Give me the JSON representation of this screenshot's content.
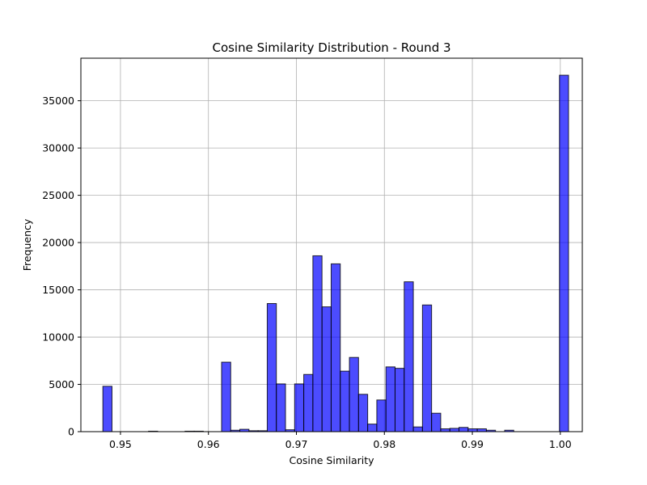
{
  "chart_data": {
    "type": "bar",
    "title": "Cosine Similarity Distribution - Round 3",
    "xlabel": "Cosine Similarity",
    "ylabel": "Frequency",
    "xlim": [
      0.9455,
      1.0025
    ],
    "ylim": [
      0,
      39500
    ],
    "grid": true,
    "colors": {
      "bar_fill": "#0000ff",
      "bar_opacity": 0.7,
      "bar_edge": "#000000",
      "grid": "#b0b0b0"
    },
    "xticks": [
      {
        "value": 0.95,
        "label": "0.95"
      },
      {
        "value": 0.96,
        "label": "0.96"
      },
      {
        "value": 0.97,
        "label": "0.97"
      },
      {
        "value": 0.98,
        "label": "0.98"
      },
      {
        "value": 0.99,
        "label": "0.99"
      },
      {
        "value": 1.0,
        "label": "1.00"
      }
    ],
    "yticks": [
      {
        "value": 0,
        "label": "0"
      },
      {
        "value": 5000,
        "label": "5000"
      },
      {
        "value": 10000,
        "label": "10000"
      },
      {
        "value": 15000,
        "label": "15000"
      },
      {
        "value": 20000,
        "label": "20000"
      },
      {
        "value": 25000,
        "label": "25000"
      },
      {
        "value": 30000,
        "label": "30000"
      },
      {
        "value": 35000,
        "label": "35000"
      }
    ],
    "bin_start": 0.948,
    "bin_width": 0.001038,
    "values": [
      4800,
      0,
      0,
      0,
      0,
      50,
      0,
      0,
      0,
      50,
      50,
      0,
      0,
      7350,
      150,
      250,
      100,
      100,
      13550,
      5050,
      200,
      5050,
      6050,
      18600,
      13200,
      17750,
      6400,
      7850,
      3950,
      800,
      3350,
      6850,
      6700,
      15850,
      500,
      13400,
      1950,
      300,
      350,
      450,
      300,
      300,
      150,
      0,
      150,
      0,
      0,
      0,
      0,
      0,
      37700
    ]
  }
}
